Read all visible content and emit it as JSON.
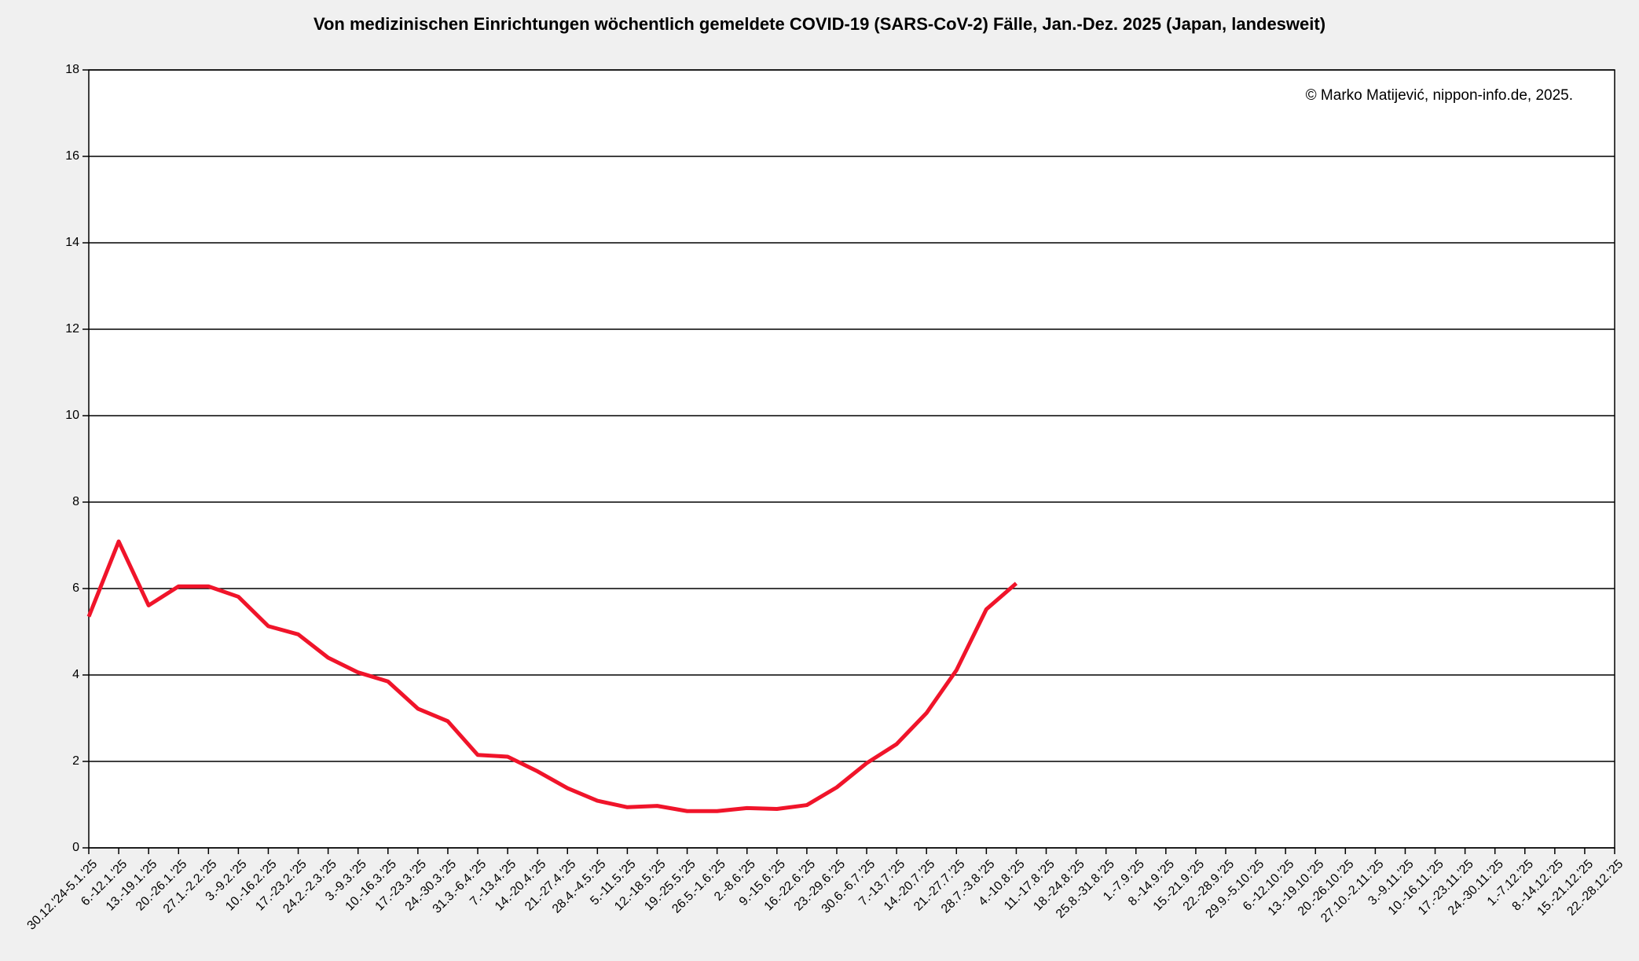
{
  "chart_data": {
    "type": "line",
    "title": "Von medizinischen Einrichtungen wöchentlich gemeldete COVID-19 (SARS-CoV-2) Fälle, Jan.-Dez. 2025 (Japan, landesweit)",
    "annotation": "© Marko Matijević, nippon-info.de, 2025.",
    "categories": [
      "30.12.'24-5.1.'25",
      "6.-12.1.'25",
      "13.-19.1.'25",
      "20.-26.1.'25",
      "27.1.-2.2.'25",
      "3.-9.2.'25",
      "10.-16.2.'25",
      "17.-23.2.'25",
      "24.2.-2.3.'25",
      "3.-9.3.'25",
      "10.-16.3.'25",
      "17.-23.3.'25",
      "24.-30.3.'25",
      "31.3.-6.4.'25",
      "7.-13.4.'25",
      "14.-20.4.'25",
      "21.-27.4.'25",
      "28.4.-4.5.'25",
      "5.-11.5.'25",
      "12.-18.5.'25",
      "19.-25.5.'25",
      "26.5.-1.6.'25",
      "2.-8.6.'25",
      "9.-15.6.'25",
      "16.-22.6.'25",
      "23.-29.6.'25",
      "30.6.-6.7.'25",
      "7.-13.7.'25",
      "14.-20.7.'25",
      "21.-27.7.'25",
      "28.7.-3.8.'25",
      "4.-10.8.'25",
      "11.-17.8.'25",
      "18.-24.8.'25",
      "25.8.-31.8.'25",
      "1.-7.9.'25",
      "8.-14.9.'25",
      "15.-21.9.'25",
      "22.-28.9.'25",
      "29.9.-5.10.'25",
      "6.-12.10.'25",
      "13.-19.10.'25",
      "20.-26.10.'25",
      "27.10.-2.11.'25",
      "3.-9.11.'25",
      "10.-16.11.'25",
      "17.-23.11.'25",
      "24.-30.11.'25",
      "1.-7.12.'25",
      "8.-14.12.'25",
      "15.-21.12.'25",
      "22.-28.12.'25"
    ],
    "series": [
      {
        "color": "#f0142a",
        "values": [
          5.35,
          7.09,
          5.61,
          6.05,
          6.05,
          5.81,
          5.13,
          4.94,
          4.4,
          4.06,
          3.85,
          3.22,
          2.93,
          2.15,
          2.11,
          1.77,
          1.38,
          1.09,
          0.94,
          0.97,
          0.85,
          0.85,
          0.92,
          0.9,
          0.99,
          1.4,
          1.96,
          2.4,
          3.12,
          4.11,
          5.52,
          6.12,
          null,
          null,
          null,
          null,
          null,
          null,
          null,
          null,
          null,
          null,
          null,
          null,
          null,
          null,
          null,
          null,
          null,
          null,
          null,
          null
        ]
      }
    ],
    "ylim": [
      0,
      18
    ],
    "yticks": [
      0,
      2,
      4,
      6,
      8,
      10,
      12,
      14,
      16,
      18
    ],
    "grid": true
  }
}
